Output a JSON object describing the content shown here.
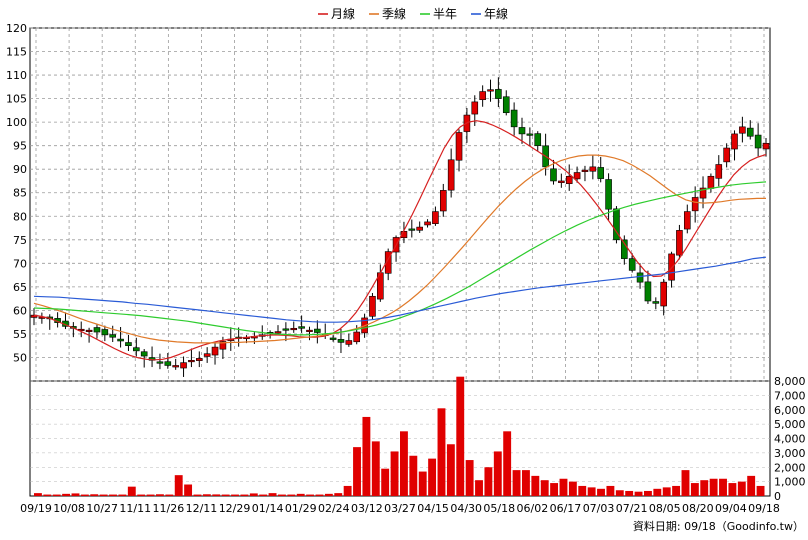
{
  "legend": [
    {
      "label": "月線",
      "color": "#d62020"
    },
    {
      "label": "季線",
      "color": "#e07a2a"
    },
    {
      "label": "半年",
      "color": "#2ecc2e"
    },
    {
      "label": "年線",
      "color": "#2a5bd6"
    }
  ],
  "source_label": "資料日期: 09/18（Goodinfo.tw）",
  "chart_data": [
    {
      "type": "candlestick",
      "yticks": [
        50,
        55,
        60,
        65,
        70,
        75,
        80,
        85,
        90,
        95,
        100,
        105,
        110,
        115,
        120
      ],
      "ylim": [
        45,
        120
      ],
      "grid": true,
      "x_tick_labels": [
        "09/19",
        "10/08",
        "10/27",
        "11/11",
        "11/26",
        "12/11",
        "12/29",
        "01/14",
        "01/29",
        "02/24",
        "03/12",
        "03/27",
        "04/15",
        "04/30",
        "05/18",
        "06/02",
        "06/17",
        "07/03",
        "07/21",
        "08/05",
        "08/20",
        "09/04",
        "09/18"
      ],
      "close": [
        59.0,
        58.6,
        58.2,
        57.4,
        56.6,
        56.2,
        56.0,
        55.8,
        55.4,
        54.8,
        54.3,
        53.5,
        52.5,
        51.4,
        50.3,
        49.4,
        48.8,
        48.3,
        48.3,
        48.9,
        49.4,
        49.8,
        50.8,
        52.2,
        53.4,
        53.9,
        54.1,
        54.3,
        54.5,
        54.8,
        55.2,
        55.5,
        55.8,
        56.2,
        56.2,
        55.8,
        55.3,
        54.7,
        53.8,
        53.2,
        53.6,
        55.4,
        58.4,
        63.0,
        68.0,
        72.5,
        75.5,
        76.8,
        77.3,
        77.7,
        78.8,
        81.0,
        85.5,
        92.0,
        97.8,
        101.5,
        104.3,
        106.5,
        106.9,
        105.0,
        102.0,
        99.0,
        97.5,
        97.3,
        95.0,
        90.5,
        87.5,
        87.5,
        88.5,
        89.3,
        89.8,
        90.5,
        88.0,
        81.5,
        75.0,
        71.0,
        68.5,
        66.0,
        62.0,
        61.5,
        66.0,
        72.0,
        77.0,
        81.0,
        84.0,
        86.0,
        88.5,
        91.0,
        94.5,
        97.5,
        99.0,
        97.0,
        94.5,
        95.5
      ],
      "series": [
        {
          "name": "月線",
          "values": [
            59.0,
            58.7,
            58.3,
            57.6,
            56.9,
            56.2,
            55.4,
            54.6,
            53.7,
            52.8,
            51.9,
            51.1,
            50.4,
            49.9,
            49.6,
            49.5,
            49.6,
            50.0,
            50.6,
            51.3,
            52.0,
            52.6,
            53.1,
            53.5,
            53.8,
            54.0,
            54.2,
            54.4,
            54.6,
            54.7,
            54.8,
            54.7,
            54.6,
            54.4,
            54.3,
            54.3,
            54.5,
            55.0,
            56.0,
            57.5,
            59.5,
            62.0,
            64.8,
            67.8,
            70.8,
            73.8,
            77.0,
            80.3,
            83.8,
            87.5,
            91.0,
            94.5,
            97.2,
            99.0,
            100.0,
            100.3,
            100.0,
            99.4,
            98.6,
            97.7,
            96.7,
            95.6,
            94.5,
            93.4,
            92.3,
            91.1,
            89.8,
            88.3,
            86.6,
            84.6,
            82.4,
            80.1,
            77.7,
            75.2,
            72.7,
            70.3,
            68.3,
            67.2,
            67.3,
            68.5,
            70.5,
            73.0,
            75.8,
            78.6,
            81.4,
            84.1,
            86.6,
            88.8,
            90.5,
            91.8,
            92.6,
            93.1
          ]
        },
        {
          "name": "季線",
          "values": [
            61.5,
            61.0,
            60.4,
            59.8,
            59.1,
            58.4,
            57.7,
            57.1,
            56.5,
            55.9,
            55.4,
            54.9,
            54.4,
            54.0,
            53.7,
            53.5,
            53.3,
            53.2,
            53.1,
            53.1,
            53.1,
            53.1,
            53.2,
            53.2,
            53.3,
            53.4,
            53.5,
            53.6,
            53.8,
            54.0,
            54.2,
            54.4,
            54.6,
            54.9,
            55.2,
            55.6,
            56.1,
            56.7,
            57.5,
            58.4,
            59.4,
            60.6,
            62.0,
            63.6,
            65.3,
            67.2,
            69.2,
            71.3,
            73.4,
            75.6,
            77.8,
            80.0,
            82.1,
            84.0,
            85.8,
            87.4,
            88.8,
            90.0,
            91.0,
            91.8,
            92.4,
            92.8,
            93.0,
            93.0,
            92.8,
            92.4,
            91.8,
            90.9,
            89.8,
            88.6,
            87.2,
            85.8,
            84.5,
            83.5,
            83.0,
            82.8,
            82.9,
            83.1,
            83.4,
            83.6,
            83.7,
            83.8,
            83.8
          ]
        },
        {
          "name": "半年",
          "values": [
            60.5,
            60.4,
            60.3,
            60.1,
            59.9,
            59.7,
            59.5,
            59.3,
            59.1,
            58.9,
            58.6,
            58.3,
            58.0,
            57.7,
            57.3,
            56.9,
            56.5,
            56.1,
            55.7,
            55.4,
            55.1,
            54.9,
            54.8,
            54.8,
            54.9,
            55.1,
            55.4,
            55.8,
            56.3,
            56.9,
            57.6,
            58.4,
            59.3,
            60.3,
            61.4,
            62.6,
            63.9,
            65.3,
            66.8,
            68.3,
            69.8,
            71.3,
            72.8,
            74.2,
            75.6,
            76.9,
            78.1,
            79.2,
            80.2,
            81.1,
            81.9,
            82.6,
            83.2,
            83.8,
            84.3,
            84.8,
            85.3,
            85.8,
            86.2,
            86.6,
            86.9,
            87.1,
            87.3
          ]
        },
        {
          "name": "年線",
          "values": [
            63.0,
            62.9,
            62.8,
            62.6,
            62.4,
            62.2,
            62.0,
            61.8,
            61.5,
            61.3,
            61.0,
            60.7,
            60.4,
            60.1,
            59.8,
            59.5,
            59.2,
            58.9,
            58.6,
            58.3,
            58.0,
            57.8,
            57.6,
            57.5,
            57.5,
            57.6,
            57.8,
            58.1,
            58.5,
            59.0,
            59.6,
            60.2,
            60.8,
            61.4,
            62.0,
            62.6,
            63.1,
            63.6,
            64.0,
            64.4,
            64.8,
            65.1,
            65.4,
            65.7,
            66.0,
            66.3,
            66.6,
            66.9,
            67.2,
            67.5,
            67.8,
            68.2,
            68.6,
            69.0,
            69.4,
            69.9,
            70.4,
            71.0,
            71.3
          ]
        }
      ]
    },
    {
      "type": "bar",
      "yticks": [
        "0",
        "1,000",
        "2,000",
        "3,000",
        "4,000",
        "5,000",
        "6,000",
        "7,000",
        "8,000"
      ],
      "ylim": [
        0,
        8000
      ],
      "values": [
        200,
        100,
        100,
        150,
        180,
        100,
        120,
        100,
        100,
        100,
        650,
        100,
        100,
        120,
        100,
        1450,
        800,
        100,
        120,
        110,
        100,
        100,
        100,
        180,
        100,
        200,
        100,
        100,
        150,
        100,
        100,
        150,
        200,
        700,
        3400,
        5500,
        3800,
        1900,
        3100,
        4500,
        2800,
        1700,
        2600,
        6100,
        3600,
        8300,
        2500,
        1100,
        2000,
        3100,
        4500,
        1800,
        1800,
        1400,
        1100,
        900,
        1200,
        1000,
        700,
        600,
        500,
        700,
        400,
        350,
        300,
        350,
        500,
        600,
        700,
        1800,
        900,
        1100,
        1200,
        1200,
        900,
        1000,
        1400,
        700
      ]
    }
  ]
}
